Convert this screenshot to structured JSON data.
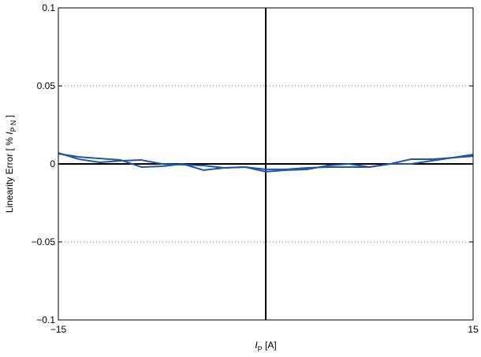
{
  "chart_data": {
    "type": "line",
    "title": "",
    "xlabel": {
      "symbol": "I",
      "subscript": "P",
      "unit": " [A]"
    },
    "ylabel": {
      "prefix": "Linearity Error [ % ",
      "symbol": "I",
      "subscript": "P N",
      "suffix": " ]"
    },
    "xlim": [
      -15,
      15
    ],
    "ylim": [
      -0.1,
      0.1
    ],
    "x_ticks": [
      -15,
      15
    ],
    "x_tick_labels": [
      "−15",
      "15"
    ],
    "y_ticks": [
      -0.1,
      -0.05,
      0,
      0.05,
      0.1
    ],
    "y_tick_labels": [
      "−0.1",
      "−0.05",
      "0",
      "0.05",
      "0.1"
    ],
    "grid": "horizontal dotted",
    "legend": "none",
    "colors": {
      "series": "#2155a8",
      "zero_lines": "#000000",
      "grid": "#888888"
    },
    "series": [
      {
        "x": [
          -15,
          -13.5,
          -12,
          -10.5,
          -9,
          -7.5,
          -6,
          -4.5,
          -3,
          -1.5,
          0,
          1.5,
          3,
          4.5,
          6,
          7.5,
          9,
          10.5,
          12,
          13.5,
          15
        ],
        "values": [
          0.007,
          0.003,
          0.001,
          0.002,
          0.0025,
          0.0,
          -0.0005,
          -0.001,
          -0.0025,
          -0.002,
          -0.005,
          -0.004,
          -0.0035,
          -0.001,
          0.0,
          -0.002,
          0.0,
          0.003,
          0.003,
          0.004,
          0.005
        ]
      },
      {
        "x": [
          -15,
          -13.5,
          -12,
          -10.5,
          -9,
          -7.5,
          -6,
          -4.5,
          -3,
          -1.5,
          0,
          1.5,
          3,
          4.5,
          6,
          7.5,
          9,
          10.5,
          12,
          13.5,
          15
        ],
        "values": [
          0.0065,
          0.0045,
          0.0035,
          0.0025,
          -0.002,
          -0.0015,
          0.0,
          -0.004,
          -0.0025,
          -0.002,
          -0.0035,
          -0.0035,
          -0.0025,
          -0.002,
          -0.002,
          -0.002,
          0.0,
          0.0,
          0.002,
          0.004,
          0.006
        ]
      }
    ]
  }
}
